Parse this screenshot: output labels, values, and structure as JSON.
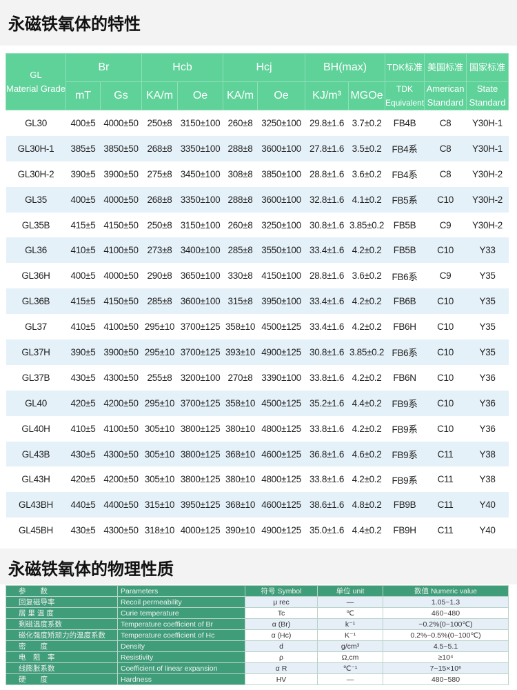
{
  "title1": "永磁铁氧体的特性",
  "title2": "永磁铁氧体的物理性质",
  "header": {
    "grade": "GL",
    "grade_en": "Material Grade",
    "br": "Br",
    "hcb": "Hcb",
    "hcj": "Hcj",
    "bh": "BH(max)",
    "tdk_cn": "TDK标准",
    "us_cn": "美国标准",
    "cn_cn": "国家标准",
    "mT": "mT",
    "Gs": "Gs",
    "KAm1": "KA/m",
    "Oe1": "Oe",
    "KAm2": "KA/m",
    "Oe2": "Oe",
    "KJ": "KJ/m³",
    "MGOe": "MGOe",
    "tdk_en": "TDK Equivalent",
    "us_en": "American Standard",
    "cn_en": "State Standard"
  },
  "rows": [
    [
      "GL30",
      "400±5",
      "4000±50",
      "250±8",
      "3150±100",
      "260±8",
      "3250±100",
      "29.8±1.6",
      "3.7±0.2",
      "FB4B",
      "C8",
      "Y30H-1"
    ],
    [
      "GL30H-1",
      "385±5",
      "3850±50",
      "268±8",
      "3350±100",
      "288±8",
      "3600±100",
      "27.8±1.6",
      "3.5±0.2",
      "FB4系",
      "C8",
      "Y30H-1"
    ],
    [
      "GL30H-2",
      "390±5",
      "3900±50",
      "275±8",
      "3450±100",
      "308±8",
      "3850±100",
      "28.8±1.6",
      "3.6±0.2",
      "FB4系",
      "C8",
      "Y30H-2"
    ],
    [
      "GL35",
      "400±5",
      "4000±50",
      "268±8",
      "3350±100",
      "288±8",
      "3600±100",
      "32.8±1.6",
      "4.1±0.2",
      "FB5系",
      "C10",
      "Y30H-2"
    ],
    [
      "GL35B",
      "415±5",
      "4150±50",
      "250±8",
      "3150±100",
      "260±8",
      "3250±100",
      "30.8±1.6",
      "3.85±0.2",
      "FB5B",
      "C9",
      "Y30H-2"
    ],
    [
      "GL36",
      "410±5",
      "4100±50",
      "273±8",
      "3400±100",
      "285±8",
      "3550±100",
      "33.4±1.6",
      "4.2±0.2",
      "FB5B",
      "C10",
      "Y33"
    ],
    [
      "GL36H",
      "400±5",
      "4000±50",
      "290±8",
      "3650±100",
      "330±8",
      "4150±100",
      "28.8±1.6",
      "3.6±0.2",
      "FB6系",
      "C9",
      "Y35"
    ],
    [
      "GL36B",
      "415±5",
      "4150±50",
      "285±8",
      "3600±100",
      "315±8",
      "3950±100",
      "33.4±1.6",
      "4.2±0.2",
      "FB6B",
      "C10",
      "Y35"
    ],
    [
      "GL37",
      "410±5",
      "4100±50",
      "295±10",
      "3700±125",
      "358±10",
      "4500±125",
      "33.4±1.6",
      "4.2±0.2",
      "FB6H",
      "C10",
      "Y35"
    ],
    [
      "GL37H",
      "390±5",
      "3900±50",
      "295±10",
      "3700±125",
      "393±10",
      "4900±125",
      "30.8±1.6",
      "3.85±0.2",
      "FB6系",
      "C10",
      "Y35"
    ],
    [
      "GL37B",
      "430±5",
      "4300±50",
      "255±8",
      "3200±100",
      "270±8",
      "3390±100",
      "33.8±1.6",
      "4.2±0.2",
      "FB6N",
      "C10",
      "Y36"
    ],
    [
      "GL40",
      "420±5",
      "4200±50",
      "295±10",
      "3700±125",
      "358±10",
      "4500±125",
      "35.2±1.6",
      "4.4±0.2",
      "FB9系",
      "C10",
      "Y36"
    ],
    [
      "GL40H",
      "410±5",
      "4100±50",
      "305±10",
      "3800±125",
      "380±10",
      "4800±125",
      "33.8±1.6",
      "4.2±0.2",
      "FB9系",
      "C10",
      "Y36"
    ],
    [
      "GL43B",
      "430±5",
      "4300±50",
      "305±10",
      "3800±125",
      "368±10",
      "4600±125",
      "36.8±1.6",
      "4.6±0.2",
      "FB9系",
      "C11",
      "Y38"
    ],
    [
      "GL43H",
      "420±5",
      "4200±50",
      "305±10",
      "3800±125",
      "380±10",
      "4800±125",
      "33.8±1.6",
      "4.2±0.2",
      "FB9系",
      "C11",
      "Y38"
    ],
    [
      "GL43BH",
      "440±5",
      "4400±50",
      "315±10",
      "3950±125",
      "368±10",
      "4600±125",
      "38.6±1.6",
      "4.8±0.2",
      "FB9B",
      "C11",
      "Y40"
    ],
    [
      "GL45BH",
      "430±5",
      "4300±50",
      "318±10",
      "4000±125",
      "390±10",
      "4900±125",
      "35.0±1.6",
      "4.4±0.2",
      "FB9H",
      "C11",
      "Y40"
    ]
  ],
  "phys_header": [
    "参　　数",
    "Parameters",
    "符号 Symbol",
    "单位 unit",
    "数值 Numeric value"
  ],
  "phys_rows": [
    [
      "回复磁导率",
      "Recoil permeability",
      "μ rec",
      "—",
      "1.05~1.3"
    ],
    [
      "居 里 温 度",
      "Curie temperature",
      "Tc",
      "℃",
      "460~480"
    ],
    [
      "剩磁温度系数",
      "Temperature coefficient of Br",
      "α (Br)",
      "k⁻¹",
      "−0.2%(0~100℃)"
    ],
    [
      "磁化强度矫顽力的温度系数",
      "Temperature coefficient of Hc",
      "α (Hc)",
      "K⁻¹",
      "0.2%~0.5%(0~100℃)"
    ],
    [
      "密　　度",
      "Density",
      "d",
      "g/cm³",
      "4.5~5.1"
    ],
    [
      "电　阻　率",
      "Resistivity",
      "ρ",
      "Ω,cm",
      "≥10⁴"
    ],
    [
      "线膨胀系数",
      "Coefficient of linear expansion",
      "α R",
      "℃⁻¹",
      "7~15×10⁶"
    ],
    [
      "硬　　度",
      "Hardness",
      "HV",
      "—",
      "480~580"
    ]
  ]
}
